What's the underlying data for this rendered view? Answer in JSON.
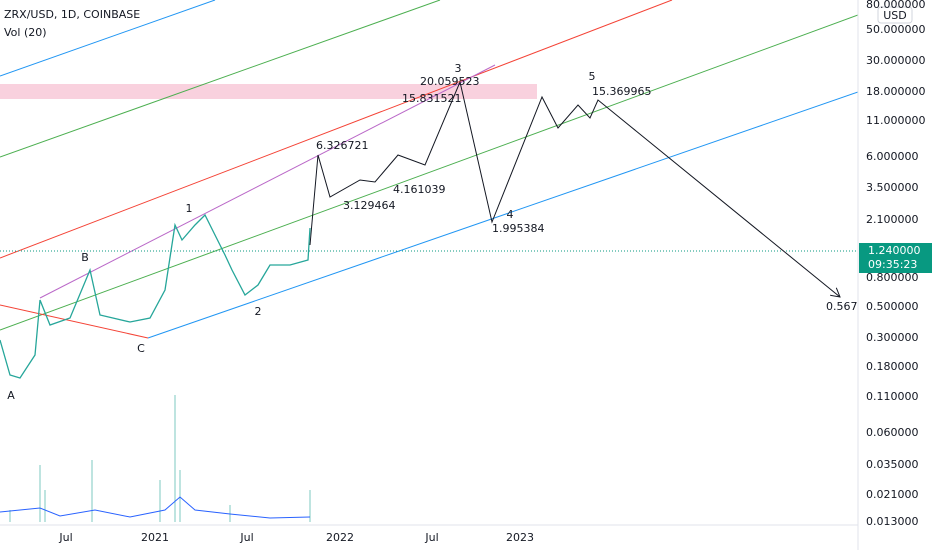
{
  "header": {
    "symbol": "ZRX/USD, 1D, COINBASE",
    "indicator": "Vol (20)"
  },
  "price_axis": {
    "currency": "USD",
    "labels": [
      "80.000000",
      "50.000000",
      "30.000000",
      "18.000000",
      "11.000000",
      "6.000000",
      "3.500000",
      "2.100000",
      "0.800000",
      "0.500000",
      "0.300000",
      "0.180000",
      "0.110000",
      "0.060000",
      "0.035000",
      "0.021000",
      "0.013000"
    ],
    "last_price": "1.240000",
    "countdown": "09:35:23"
  },
  "time_axis": {
    "labels": [
      "Jul",
      "2021",
      "Jul",
      "2022",
      "Jul",
      "2023"
    ]
  },
  "annotations": [
    "A",
    "B",
    "C",
    "1",
    "2",
    "3",
    "4",
    "5",
    "6.326721",
    "3.129464",
    "4.161039",
    "20.059523",
    "15.831521",
    "1.995384",
    "15.369965",
    "0.567"
  ]
}
